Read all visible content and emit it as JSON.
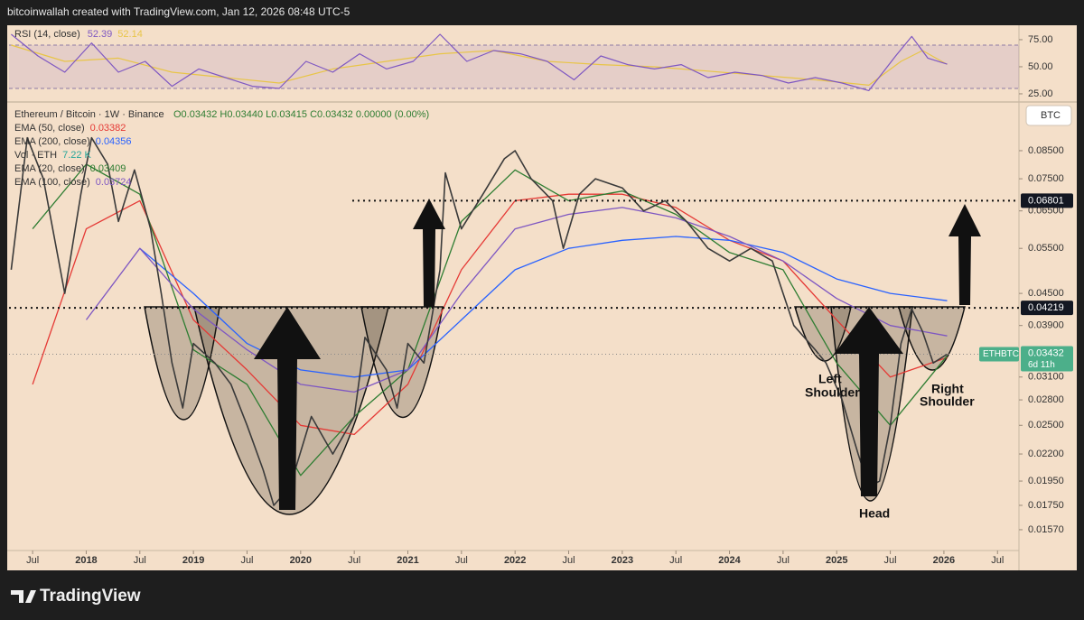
{
  "header": {
    "text": "bitcoinwallah created with TradingView.com, Jan 12, 2026 08:48 UTC-5"
  },
  "footer": {
    "logo": "TradingView"
  },
  "chart_data": {
    "type": "line",
    "log_scale": true,
    "currency_button": "BTC",
    "legend": {
      "symbol": "Ethereum / Bitcoin · 1W · Binance",
      "ohlc": "O0.03432 H0.03440 L0.03415 C0.03432 0.00000 (0.00%)",
      "items": [
        {
          "label": "EMA (50, close)",
          "value": "0.03382",
          "color": "#e53935"
        },
        {
          "label": "EMA (200, close)",
          "value": "0.04356",
          "color": "#2962ff"
        },
        {
          "label": "Vol · ETH",
          "value": "7.22 K",
          "color": "#26a69a"
        },
        {
          "label": "EMA (20, close)",
          "value": "0.03409",
          "color": "#2e7d32"
        },
        {
          "label": "EMA (100, close)",
          "value": "0.03724",
          "color": "#7e57c2"
        }
      ]
    },
    "xlim": [
      2017.28,
      2026.7
    ],
    "xticks": [
      {
        "value": 2017.5,
        "label": "Jul"
      },
      2018,
      {
        "value": 2018.5,
        "label": "Jul"
      },
      2019,
      {
        "value": 2019.5,
        "label": "Jul"
      },
      2020,
      {
        "value": 2020.5,
        "label": "Jul"
      },
      2021,
      {
        "value": 2021.5,
        "label": "Jul"
      },
      2022,
      {
        "value": 2022.5,
        "label": "Jul"
      },
      2023,
      {
        "value": 2023.5,
        "label": "Jul"
      },
      2024,
      {
        "value": 2024.5,
        "label": "Jul"
      },
      2025,
      {
        "value": 2025.5,
        "label": "Jul"
      },
      2026,
      {
        "value": 2026.5,
        "label": "Jul"
      }
    ],
    "ylim": [
      0.01431,
      0.1056
    ],
    "yticks": [
      {
        "value": 0.085,
        "label": "0.08500"
      },
      {
        "value": 0.075,
        "label": "0.07500"
      },
      {
        "value": 0.065,
        "label": "0.06500"
      },
      {
        "value": 0.055,
        "label": "0.05500"
      },
      {
        "value": 0.045,
        "label": "0.04500"
      },
      {
        "value": 0.039,
        "label": "0.03900"
      },
      {
        "value": 0.031,
        "label": "0.03100"
      },
      {
        "value": 0.028,
        "label": "0.02800"
      },
      {
        "value": 0.025,
        "label": "0.02500"
      },
      {
        "value": 0.022,
        "label": "0.02200"
      },
      {
        "value": 0.0195,
        "label": "0.01950"
      },
      {
        "value": 0.0175,
        "label": "0.01750"
      },
      {
        "value": 0.0157,
        "label": "0.01570"
      }
    ],
    "price": {
      "color": "#3a3a3a",
      "x": [
        2017.3,
        2017.45,
        2017.6,
        2017.8,
        2017.95,
        2018.05,
        2018.2,
        2018.3,
        2018.45,
        2018.6,
        2018.7,
        2018.8,
        2018.9,
        2019.0,
        2019.2,
        2019.35,
        2019.5,
        2019.65,
        2019.75,
        2019.9,
        2020.1,
        2020.3,
        2020.5,
        2020.6,
        2020.8,
        2020.9,
        2021.0,
        2021.15,
        2021.3,
        2021.35,
        2021.5,
        2021.7,
        2021.9,
        2022.0,
        2022.15,
        2022.35,
        2022.45,
        2022.6,
        2022.75,
        2023.0,
        2023.2,
        2023.4,
        2023.6,
        2023.8,
        2024.0,
        2024.2,
        2024.4,
        2024.5,
        2024.6,
        2024.8,
        2024.9,
        2025.05,
        2025.2,
        2025.3,
        2025.4,
        2025.5,
        2025.6,
        2025.7,
        2025.8,
        2025.9,
        2026.03
      ],
      "values": [
        0.05,
        0.09,
        0.075,
        0.045,
        0.07,
        0.09,
        0.08,
        0.062,
        0.078,
        0.06,
        0.045,
        0.033,
        0.027,
        0.036,
        0.033,
        0.03,
        0.025,
        0.0205,
        0.0175,
        0.019,
        0.026,
        0.022,
        0.026,
        0.037,
        0.032,
        0.027,
        0.036,
        0.033,
        0.05,
        0.077,
        0.06,
        0.07,
        0.082,
        0.085,
        0.075,
        0.068,
        0.055,
        0.07,
        0.075,
        0.072,
        0.065,
        0.068,
        0.062,
        0.055,
        0.052,
        0.055,
        0.052,
        0.045,
        0.039,
        0.035,
        0.033,
        0.028,
        0.022,
        0.019,
        0.0195,
        0.025,
        0.036,
        0.042,
        0.038,
        0.033,
        0.03432
      ]
    },
    "ema_x": [
      2017.5,
      2018,
      2018.5,
      2019,
      2019.5,
      2020,
      2020.5,
      2021,
      2021.5,
      2022,
      2022.5,
      2023,
      2023.5,
      2024,
      2024.5,
      2025,
      2025.5,
      2026.03
    ],
    "series": [
      {
        "color": "#e53935",
        "values": [
          0.03,
          0.06,
          0.068,
          0.04,
          0.032,
          0.025,
          0.024,
          0.03,
          0.05,
          0.068,
          0.07,
          0.07,
          0.066,
          0.057,
          0.052,
          0.04,
          0.031,
          0.03382
        ]
      },
      {
        "color": "#2962ff",
        "values": [
          null,
          null,
          0.055,
          0.045,
          0.036,
          0.032,
          0.031,
          0.032,
          0.04,
          0.05,
          0.055,
          0.057,
          0.058,
          0.057,
          0.054,
          0.048,
          0.045,
          0.04356
        ]
      },
      {
        "color": "#2e7d32",
        "values": [
          0.06,
          0.08,
          0.07,
          0.035,
          0.03,
          0.02,
          0.026,
          0.032,
          0.062,
          0.078,
          0.068,
          0.071,
          0.064,
          0.054,
          0.05,
          0.033,
          0.025,
          0.03409
        ]
      },
      {
        "color": "#7e57c2",
        "values": [
          null,
          0.04,
          0.055,
          0.042,
          0.035,
          0.03,
          0.029,
          0.032,
          0.045,
          0.06,
          0.064,
          0.066,
          0.063,
          0.058,
          0.052,
          0.044,
          0.039,
          0.03724
        ]
      }
    ],
    "levels": [
      0.06801,
      0.04219
    ],
    "last_price": 0.03432,
    "symbol": "ETHBTC",
    "countdown": "6d 11h",
    "annotations": {
      "left_shoulder": [
        "Left",
        "Shoulder"
      ],
      "right_shoulder": [
        "Right",
        "Shoulder"
      ],
      "head": "Head"
    },
    "rsi": {
      "title": "RSI (14, close)",
      "last": "52.39",
      "ma_last": "52.14",
      "ylim": [
        18.3,
        88.3
      ],
      "yticks": [
        {
          "value": 75,
          "label": "75.00"
        },
        {
          "value": 50,
          "label": "50.00"
        },
        {
          "value": 25,
          "label": "25.00"
        }
      ],
      "band": [
        30,
        70
      ],
      "color": "#7e57c2",
      "ma_color": "#e8c547",
      "x": [
        2017.3,
        2017.55,
        2017.8,
        2018.05,
        2018.3,
        2018.55,
        2018.8,
        2019.05,
        2019.3,
        2019.55,
        2019.8,
        2020.05,
        2020.3,
        2020.55,
        2020.8,
        2021.05,
        2021.3,
        2021.55,
        2021.8,
        2022.05,
        2022.3,
        2022.55,
        2022.8,
        2023.05,
        2023.3,
        2023.55,
        2023.8,
        2024.05,
        2024.3,
        2024.55,
        2024.8,
        2025.05,
        2025.3,
        2025.55,
        2025.7,
        2025.85,
        2026.03
      ],
      "values": [
        80,
        60,
        45,
        72,
        45,
        55,
        32,
        48,
        40,
        32,
        30,
        55,
        45,
        62,
        48,
        55,
        80,
        55,
        65,
        62,
        55,
        38,
        60,
        52,
        48,
        52,
        40,
        45,
        42,
        35,
        40,
        35,
        28,
        60,
        78,
        58,
        52.39
      ],
      "ma_x": [
        2017.3,
        2017.8,
        2018.3,
        2018.8,
        2019.3,
        2019.8,
        2020.3,
        2020.8,
        2021.3,
        2021.8,
        2022.3,
        2022.8,
        2023.3,
        2023.8,
        2024.3,
        2024.8,
        2025.3,
        2025.6,
        2025.8,
        2026.03
      ],
      "ma_values": [
        70,
        55,
        58,
        45,
        40,
        35,
        48,
        55,
        62,
        65,
        55,
        52,
        50,
        46,
        42,
        38,
        33,
        55,
        65,
        52.14
      ]
    }
  }
}
